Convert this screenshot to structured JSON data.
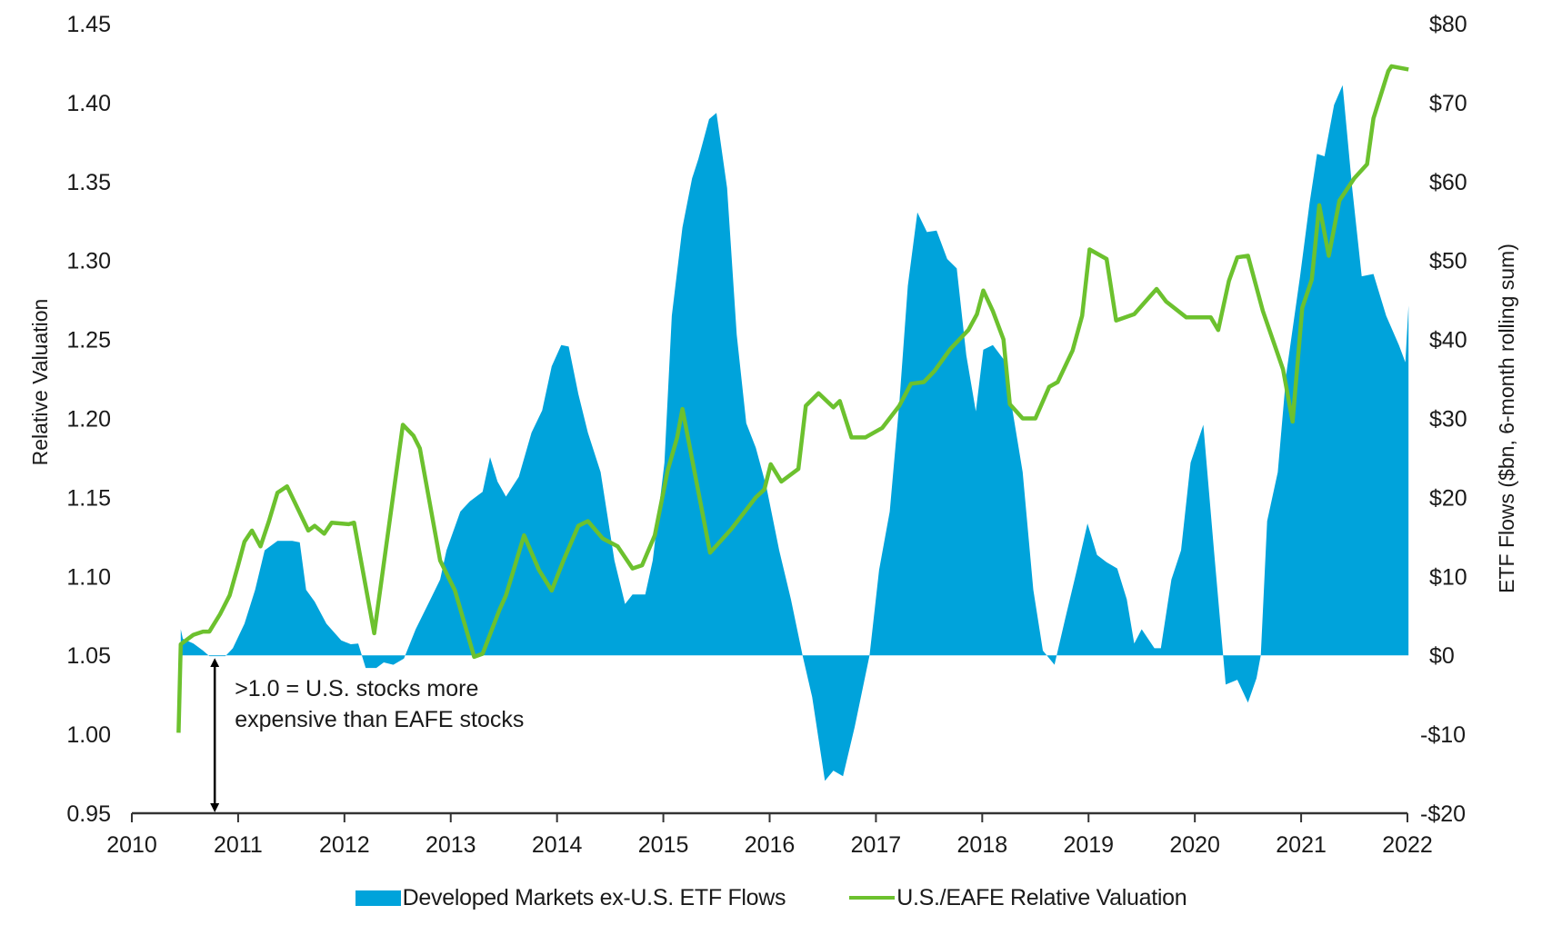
{
  "chart_data": {
    "type": "area",
    "title": "",
    "xlabel": "",
    "ylabel_left": "Relative Valuation",
    "ylabel_right": "ETF Flows ($bn, 6-month rolling sum)",
    "x_range": [
      2010,
      2022
    ],
    "x_ticks": [
      "2010",
      "2011",
      "2012",
      "2013",
      "2014",
      "2015",
      "2016",
      "2017",
      "2018",
      "2019",
      "2020",
      "2021",
      "2022"
    ],
    "y_left_range": [
      0.95,
      1.45
    ],
    "y_left_ticks": [
      "1.45",
      "1.40",
      "1.35",
      "1.30",
      "1.25",
      "1.20",
      "1.15",
      "1.10",
      "1.05",
      "1.00",
      "0.95"
    ],
    "y_right_range": [
      -20,
      80
    ],
    "y_right_ticks": [
      "$80",
      "$70",
      "$60",
      "$50",
      "$40",
      "$30",
      "$20",
      "$10",
      "$0",
      "-$10",
      "-$20"
    ],
    "grid": false,
    "legend_position": "bottom-center",
    "annotation": {
      "line1": ">1.0 = U.S. stocks more",
      "line2": "expensive than EAFE stocks",
      "arrow_from": 1.05,
      "arrow_to": 0.95,
      "arrow_x": 2010.78
    },
    "series": [
      {
        "name": "Developed Markets ex-U.S. ETF Flows",
        "type": "area",
        "axis": "right",
        "color": "#00A3DB",
        "x": [
          2010.46,
          2010.48,
          2010.58,
          2010.67,
          2010.73,
          2010.88,
          2010.95,
          2011.06,
          2011.16,
          2011.25,
          2011.37,
          2011.51,
          2011.58,
          2011.64,
          2011.72,
          2011.83,
          2011.97,
          2012.06,
          2012.13,
          2012.2,
          2012.3,
          2012.37,
          2012.46,
          2012.56,
          2012.67,
          2012.81,
          2012.9,
          2012.96,
          2013.09,
          2013.18,
          2013.3,
          2013.37,
          2013.44,
          2013.52,
          2013.64,
          2013.76,
          2013.86,
          2013.95,
          2014.04,
          2014.11,
          2014.2,
          2014.29,
          2014.41,
          2014.54,
          2014.64,
          2014.71,
          2014.83,
          2014.9,
          2015.01,
          2015.08,
          2015.18,
          2015.27,
          2015.33,
          2015.43,
          2015.5,
          2015.6,
          2015.69,
          2015.78,
          2015.87,
          2015.97,
          2016.09,
          2016.2,
          2016.31,
          2016.4,
          2016.52,
          2016.6,
          2016.69,
          2016.8,
          2016.94,
          2017.03,
          2017.13,
          2017.22,
          2017.3,
          2017.39,
          2017.48,
          2017.57,
          2017.67,
          2017.76,
          2017.85,
          2017.94,
          2018.01,
          2018.1,
          2018.2,
          2018.29,
          2018.38,
          2018.48,
          2018.57,
          2018.68,
          2018.78,
          2018.89,
          2018.99,
          2019.08,
          2019.17,
          2019.27,
          2019.36,
          2019.43,
          2019.5,
          2019.62,
          2019.68,
          2019.78,
          2019.87,
          2019.96,
          2020.08,
          2020.18,
          2020.29,
          2020.4,
          2020.5,
          2020.58,
          2020.62,
          2020.68,
          2020.78,
          2020.86,
          2020.99,
          2021.08,
          2021.15,
          2021.22,
          2021.31,
          2021.39,
          2021.48,
          2021.57,
          2021.68,
          2021.8,
          2021.92,
          2021.98,
          2022.01
        ],
        "values": [
          3.3,
          2.1,
          1.5,
          0.6,
          -0.1,
          -0.1,
          0.9,
          4.0,
          8.3,
          13.3,
          14.5,
          14.5,
          14.3,
          8.3,
          6.8,
          4.0,
          1.9,
          1.4,
          1.5,
          -1.6,
          -1.6,
          -0.9,
          -1.2,
          -0.4,
          3.3,
          7.1,
          9.6,
          13.3,
          18.2,
          19.5,
          20.7,
          25.1,
          22.0,
          20.1,
          22.6,
          28.2,
          31.0,
          36.6,
          39.3,
          39.1,
          33.1,
          28.2,
          23.2,
          12.0,
          6.5,
          7.7,
          7.7,
          12.0,
          24.4,
          43.0,
          54.2,
          60.4,
          62.9,
          67.9,
          68.7,
          59.2,
          40.6,
          29.4,
          26.3,
          21.3,
          13.3,
          7.1,
          0.0,
          -5.3,
          -15.9,
          -14.6,
          -15.3,
          -9.1,
          0.0,
          10.8,
          18.2,
          31.9,
          46.8,
          56.1,
          53.6,
          53.8,
          50.2,
          49.0,
          38.0,
          30.9,
          38.7,
          39.3,
          37.5,
          30.6,
          23.2,
          8.3,
          0.6,
          -1.2,
          4.6,
          10.8,
          16.7,
          12.7,
          11.8,
          11.0,
          7.1,
          1.5,
          3.3,
          0.9,
          0.9,
          9.6,
          13.3,
          24.4,
          29.2,
          13.3,
          -3.7,
          -3.1,
          -6.0,
          -2.9,
          0.0,
          17.0,
          23.2,
          35.6,
          48.0,
          57.3,
          63.5,
          63.2,
          69.7,
          72.2,
          59.2,
          48.0,
          48.3,
          43.0,
          39.3,
          37.1,
          44.3
        ]
      },
      {
        "name": "U.S./EAFE Relative Valuation",
        "type": "line",
        "axis": "left",
        "color": "#6CC12E",
        "x": [
          2010.44,
          2010.46,
          2010.58,
          2010.67,
          2010.73,
          2010.83,
          2010.92,
          2011.0,
          2011.06,
          2011.13,
          2011.21,
          2011.29,
          2011.37,
          2011.46,
          2011.66,
          2011.72,
          2011.81,
          2011.88,
          2012.04,
          2012.09,
          2012.28,
          2012.55,
          2012.65,
          2012.71,
          2012.9,
          2013.04,
          2013.22,
          2013.3,
          2013.46,
          2013.52,
          2013.69,
          2013.83,
          2013.95,
          2014.06,
          2014.2,
          2014.29,
          2014.43,
          2014.57,
          2014.71,
          2014.8,
          2014.92,
          2015.04,
          2015.13,
          2015.18,
          2015.44,
          2015.64,
          2015.87,
          2015.95,
          2016.01,
          2016.11,
          2016.27,
          2016.34,
          2016.46,
          2016.6,
          2016.66,
          2016.77,
          2016.9,
          2017.06,
          2017.22,
          2017.33,
          2017.45,
          2017.55,
          2017.7,
          2017.87,
          2017.95,
          2018.01,
          2018.1,
          2018.2,
          2018.26,
          2018.38,
          2018.5,
          2018.63,
          2018.71,
          2018.85,
          2018.94,
          2019.01,
          2019.17,
          2019.26,
          2019.43,
          2019.64,
          2019.73,
          2019.92,
          2020.15,
          2020.22,
          2020.32,
          2020.4,
          2020.5,
          2020.64,
          2020.83,
          2020.92,
          2021.01,
          2021.1,
          2021.17,
          2021.26,
          2021.36,
          2021.5,
          2021.62,
          2021.68,
          2021.82,
          2021.85,
          2022.01
        ],
        "values": [
          1.001,
          1.057,
          1.063,
          1.065,
          1.065,
          1.076,
          1.088,
          1.107,
          1.122,
          1.129,
          1.119,
          1.135,
          1.153,
          1.157,
          1.129,
          1.132,
          1.127,
          1.134,
          1.133,
          1.134,
          1.064,
          1.196,
          1.189,
          1.181,
          1.11,
          1.091,
          1.049,
          1.051,
          1.079,
          1.088,
          1.126,
          1.104,
          1.091,
          1.11,
          1.132,
          1.135,
          1.124,
          1.119,
          1.105,
          1.107,
          1.126,
          1.167,
          1.188,
          1.206,
          1.115,
          1.13,
          1.15,
          1.155,
          1.171,
          1.16,
          1.168,
          1.208,
          1.216,
          1.207,
          1.211,
          1.188,
          1.188,
          1.194,
          1.208,
          1.222,
          1.223,
          1.23,
          1.244,
          1.256,
          1.266,
          1.281,
          1.268,
          1.25,
          1.209,
          1.2,
          1.2,
          1.22,
          1.223,
          1.243,
          1.265,
          1.307,
          1.301,
          1.262,
          1.266,
          1.282,
          1.274,
          1.264,
          1.264,
          1.256,
          1.287,
          1.302,
          1.303,
          1.268,
          1.231,
          1.198,
          1.27,
          1.288,
          1.335,
          1.303,
          1.338,
          1.352,
          1.361,
          1.39,
          1.42,
          1.423,
          1.421
        ]
      }
    ]
  },
  "legend": {
    "area_label": "Developed Markets ex-U.S. ETF Flows",
    "line_label": "U.S./EAFE Relative Valuation"
  }
}
